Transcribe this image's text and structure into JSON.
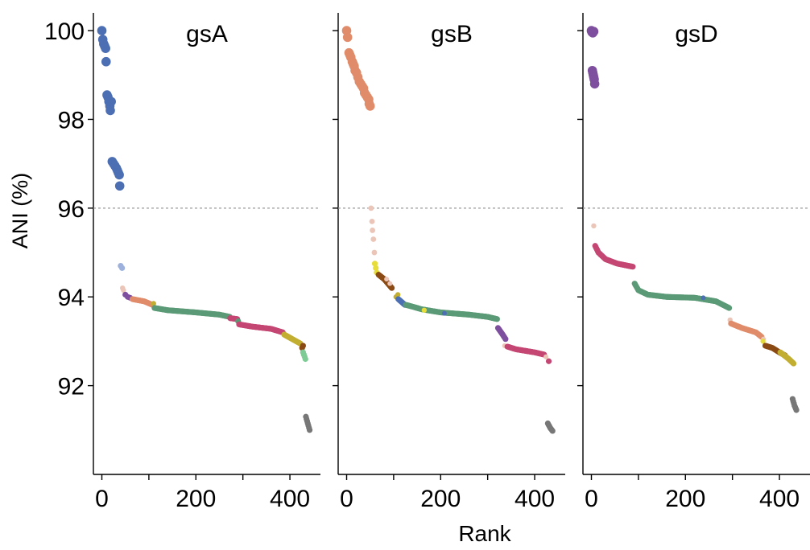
{
  "chart_data": {
    "type": "scatter",
    "ylabel": "ANI (%)",
    "xlabel": "Rank",
    "ylim": [
      90.0,
      100.4
    ],
    "yticks": [
      92,
      94,
      96,
      98,
      100
    ],
    "xlim": [
      -18,
      465
    ],
    "xticks": [
      0,
      200,
      400
    ],
    "threshold": 96,
    "grid": false,
    "colors": {
      "blue": "#4c6fb3",
      "lightblue": "#9db1dc",
      "salmon": "#e08c6a",
      "lightsalmon": "#ebc6b8",
      "purple": "#7e4f9e",
      "green": "#5b9a76",
      "pink": "#c44672",
      "yellow": "#c2ae31",
      "brightyellow": "#e6dc3a",
      "brown": "#8b4a14",
      "mint": "#7ecc95",
      "gray": "#777777"
    },
    "panels": [
      {
        "title": "gsA",
        "series": [
          {
            "color": "blue",
            "size": 5.8,
            "points": [
              [
                0,
                100.0
              ],
              [
                2,
                99.8
              ],
              [
                4,
                99.7
              ],
              [
                6,
                99.65
              ],
              [
                8,
                99.6
              ],
              [
                9,
                99.3
              ],
              [
                11,
                98.55
              ],
              [
                13,
                98.5
              ],
              [
                15,
                98.4
              ],
              [
                17,
                98.3
              ],
              [
                18,
                98.2
              ],
              [
                20,
                98.4
              ],
              [
                22,
                97.05
              ],
              [
                25,
                97.0
              ],
              [
                28,
                96.95
              ],
              [
                31,
                96.9
              ],
              [
                33,
                96.85
              ],
              [
                35,
                96.8
              ],
              [
                37,
                96.75
              ],
              [
                38,
                96.5
              ]
            ]
          },
          {
            "color": "lightblue",
            "size": 3.6,
            "points": [
              [
                40,
                94.7
              ],
              [
                43,
                94.65
              ]
            ]
          },
          {
            "color": "lightsalmon",
            "size": 3.2,
            "points": [
              [
                44,
                94.2
              ],
              [
                46,
                94.15
              ]
            ]
          },
          {
            "color": "purple",
            "size": 3.6,
            "points": [
              [
                50,
                94.05
              ],
              [
                55,
                94.0
              ],
              [
                60,
                93.98
              ]
            ]
          },
          {
            "color": "salmon",
            "size": 3.6,
            "line": [
              [
                65,
                93.95
              ],
              [
                90,
                93.9
              ],
              [
                108,
                93.82
              ]
            ]
          },
          {
            "color": "yellow",
            "size": 3.2,
            "points": [
              [
                110,
                93.85
              ]
            ]
          },
          {
            "color": "green",
            "size": 3.6,
            "line": [
              [
                112,
                93.75
              ],
              [
                140,
                93.7
              ],
              [
                200,
                93.65
              ],
              [
                250,
                93.6
              ],
              [
                272,
                93.55
              ]
            ]
          },
          {
            "color": "pink",
            "size": 3.6,
            "line": [
              [
                273,
                93.52
              ],
              [
                288,
                93.5
              ]
            ]
          },
          {
            "color": "green",
            "size": 3.6,
            "points": [
              [
                290,
                93.45
              ]
            ]
          },
          {
            "color": "pink",
            "size": 3.6,
            "line": [
              [
                292,
                93.38
              ],
              [
                320,
                93.33
              ],
              [
                360,
                93.28
              ],
              [
                385,
                93.2
              ]
            ]
          },
          {
            "color": "yellow",
            "size": 3.6,
            "line": [
              [
                388,
                93.15
              ],
              [
                405,
                93.05
              ],
              [
                422,
                92.95
              ]
            ]
          },
          {
            "color": "brown",
            "size": 3.6,
            "points": [
              [
                426,
                92.85
              ],
              [
                428,
                92.9
              ]
            ]
          },
          {
            "color": "mint",
            "size": 3.6,
            "line": [
              [
                428,
                92.75
              ],
              [
                433,
                92.6
              ]
            ]
          },
          {
            "color": "gray",
            "size": 3.6,
            "line": [
              [
                434,
                91.3
              ],
              [
                438,
                91.15
              ],
              [
                442,
                91.0
              ]
            ]
          }
        ]
      },
      {
        "title": "gsB",
        "series": [
          {
            "color": "salmon",
            "size": 5.8,
            "points": [
              [
                0,
                100.0
              ],
              [
                2,
                99.85
              ],
              [
                5,
                99.5
              ],
              [
                7,
                99.45
              ],
              [
                9,
                99.4
              ],
              [
                12,
                99.3
              ],
              [
                14,
                99.25
              ],
              [
                16,
                99.2
              ],
              [
                18,
                99.1
              ],
              [
                21,
                99.05
              ],
              [
                24,
                98.95
              ],
              [
                27,
                98.85
              ],
              [
                30,
                98.8
              ],
              [
                33,
                98.75
              ],
              [
                36,
                98.7
              ],
              [
                38,
                98.6
              ],
              [
                41,
                98.55
              ],
              [
                44,
                98.5
              ],
              [
                47,
                98.45
              ],
              [
                48,
                98.35
              ],
              [
                50,
                98.3
              ]
            ]
          },
          {
            "color": "lightsalmon",
            "size": 3.4,
            "points": [
              [
                52,
                96.0
              ],
              [
                54,
                95.7
              ],
              [
                55,
                95.5
              ],
              [
                57,
                95.3
              ],
              [
                59,
                95.0
              ]
            ]
          },
          {
            "color": "brightyellow",
            "size": 3.6,
            "points": [
              [
                60,
                94.75
              ],
              [
                62,
                94.65
              ],
              [
                64,
                94.55
              ]
            ]
          },
          {
            "color": "brown",
            "size": 3.6,
            "line": [
              [
                68,
                94.5
              ],
              [
                80,
                94.4
              ],
              [
                96,
                94.2
              ]
            ]
          },
          {
            "color": "lightsalmon",
            "size": 3.0,
            "points": [
              [
                85,
                94.4
              ],
              [
                92,
                94.3
              ]
            ]
          },
          {
            "color": "yellow",
            "size": 3.2,
            "points": [
              [
                105,
                94.0
              ],
              [
                109,
                94.05
              ]
            ]
          },
          {
            "color": "blue",
            "size": 3.6,
            "line": [
              [
                110,
                93.95
              ],
              [
                124,
                93.82
              ]
            ]
          },
          {
            "color": "green",
            "size": 3.6,
            "line": [
              [
                126,
                93.82
              ],
              [
                140,
                93.78
              ],
              [
                160,
                93.72
              ],
              [
                200,
                93.65
              ],
              [
                260,
                93.6
              ],
              [
                300,
                93.55
              ],
              [
                320,
                93.5
              ]
            ]
          },
          {
            "color": "brightyellow",
            "size": 3.2,
            "points": [
              [
                165,
                93.7
              ]
            ]
          },
          {
            "color": "blue",
            "size": 3.0,
            "points": [
              [
                208,
                93.63
              ]
            ]
          },
          {
            "color": "purple",
            "size": 3.6,
            "line": [
              [
                322,
                93.3
              ],
              [
                332,
                93.15
              ],
              [
                338,
                93.05
              ]
            ]
          },
          {
            "color": "lightsalmon",
            "size": 3.0,
            "points": [
              [
                336,
                92.9
              ]
            ]
          },
          {
            "color": "pink",
            "size": 3.6,
            "line": [
              [
                342,
                92.88
              ],
              [
                360,
                92.82
              ],
              [
                400,
                92.75
              ],
              [
                420,
                92.7
              ]
            ]
          },
          {
            "color": "lightsalmon",
            "size": 3.0,
            "points": [
              [
                424,
                92.65
              ]
            ]
          },
          {
            "color": "pink",
            "size": 3.6,
            "points": [
              [
                430,
                92.55
              ]
            ]
          },
          {
            "color": "gray",
            "size": 3.6,
            "line": [
              [
                428,
                91.15
              ],
              [
                433,
                91.05
              ],
              [
                438,
                90.98
              ]
            ]
          }
        ]
      },
      {
        "title": "gsD",
        "series": [
          {
            "color": "purple",
            "size": 5.8,
            "points": [
              [
                0,
                100.0
              ],
              [
                1,
                99.97
              ],
              [
                3,
                99.95
              ],
              [
                5,
                99.98
              ],
              [
                2,
                99.1
              ],
              [
                3,
                99.05
              ],
              [
                4,
                99.0
              ],
              [
                5,
                98.95
              ],
              [
                6,
                98.9
              ],
              [
                7,
                98.8
              ]
            ]
          },
          {
            "color": "lightsalmon",
            "size": 3.2,
            "points": [
              [
                5,
                95.6
              ]
            ]
          },
          {
            "color": "pink",
            "size": 3.6,
            "line": [
              [
                8,
                95.15
              ],
              [
                15,
                95.0
              ],
              [
                30,
                94.85
              ],
              [
                55,
                94.75
              ],
              [
                88,
                94.68
              ]
            ]
          },
          {
            "color": "green",
            "size": 3.6,
            "line": [
              [
                92,
                94.3
              ],
              [
                100,
                94.15
              ],
              [
                120,
                94.05
              ],
              [
                160,
                94.0
              ],
              [
                220,
                93.98
              ],
              [
                265,
                93.9
              ],
              [
                293,
                93.75
              ]
            ]
          },
          {
            "color": "blue",
            "size": 3.0,
            "points": [
              [
                238,
                93.98
              ]
            ]
          },
          {
            "color": "lightsalmon",
            "size": 3.2,
            "points": [
              [
                295,
                93.48
              ]
            ]
          },
          {
            "color": "salmon",
            "size": 3.6,
            "line": [
              [
                297,
                93.4
              ],
              [
                320,
                93.3
              ],
              [
                350,
                93.2
              ],
              [
                362,
                93.1
              ]
            ]
          },
          {
            "color": "lightsalmon",
            "size": 3.0,
            "points": [
              [
                366,
                93.05
              ]
            ]
          },
          {
            "color": "brightyellow",
            "size": 3.2,
            "points": [
              [
                365,
                93.0
              ]
            ]
          },
          {
            "color": "brown",
            "size": 3.6,
            "line": [
              [
                370,
                92.9
              ],
              [
                385,
                92.85
              ],
              [
                400,
                92.75
              ],
              [
                412,
                92.68
              ]
            ]
          },
          {
            "color": "yellow",
            "size": 3.6,
            "line": [
              [
                402,
                92.75
              ],
              [
                420,
                92.6
              ],
              [
                430,
                92.5
              ]
            ]
          },
          {
            "color": "gray",
            "size": 3.6,
            "line": [
              [
                428,
                91.7
              ],
              [
                432,
                91.55
              ],
              [
                436,
                91.45
              ]
            ]
          }
        ]
      }
    ]
  }
}
